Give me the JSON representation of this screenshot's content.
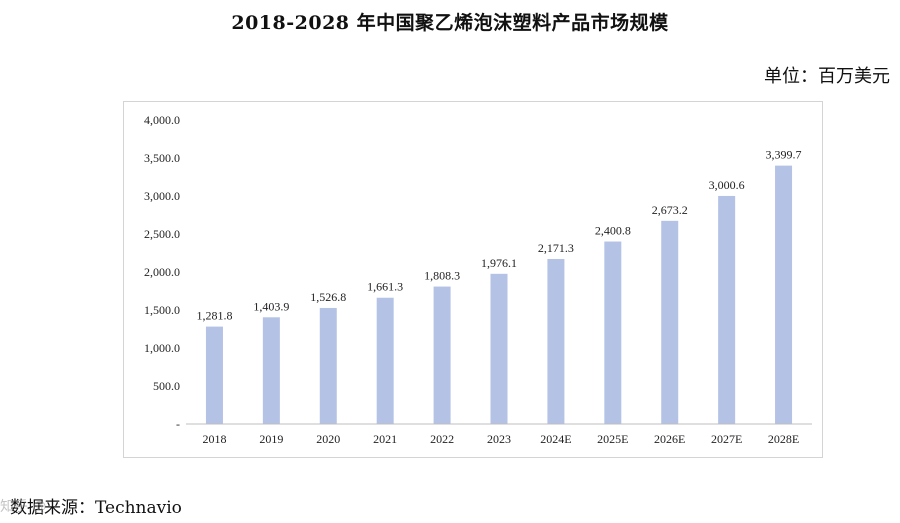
{
  "page": {
    "title": "2018-2028 年中国聚乙烯泡沫塑料产品市场规模",
    "unit": "单位：百万美元",
    "source": "数据来源：Technavio",
    "watermark": "知乎 @"
  },
  "chart_data": {
    "type": "bar",
    "title": "2018-2028 年中国聚乙烯泡沫塑料产品市场规模",
    "xlabel": "",
    "ylabel": "",
    "unit": "百万美元",
    "ylim": [
      0,
      4000
    ],
    "y_ticks": [
      0,
      500,
      1000,
      1500,
      2000,
      2500,
      3000,
      3500,
      4000
    ],
    "y_tick_labels": [
      "-",
      "500.0",
      "1,000.0",
      "1,500.0",
      "2,000.0",
      "2,500.0",
      "3,000.0",
      "3,500.0",
      "4,000.0"
    ],
    "categories": [
      "2018",
      "2019",
      "2020",
      "2021",
      "2022",
      "2023",
      "2024E",
      "2025E",
      "2026E",
      "2027E",
      "2028E"
    ],
    "values": [
      1281.8,
      1403.9,
      1526.8,
      1661.3,
      1808.3,
      1976.1,
      2171.3,
      2400.8,
      2673.2,
      3000.6,
      3399.7
    ],
    "data_labels": [
      "1,281.8",
      "1,403.9",
      "1,526.8",
      "1,661.3",
      "1,808.3",
      "1,976.1",
      "2,171.3",
      "2,400.8",
      "2,673.2",
      "3,000.6",
      "3,399.7"
    ],
    "bar_color": "#b4c2e5",
    "grid": false,
    "legend": "none"
  }
}
